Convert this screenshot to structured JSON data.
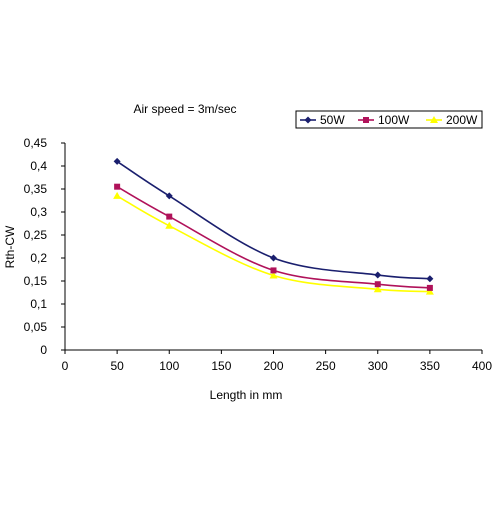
{
  "chart_data": {
    "type": "line",
    "title": "Air speed = 3m/sec",
    "xlabel": "Length in mm",
    "ylabel": "Rth-CW",
    "xlim": [
      0,
      400
    ],
    "ylim": [
      0,
      0.45
    ],
    "xticks": [
      0,
      50,
      100,
      150,
      200,
      250,
      300,
      350,
      400
    ],
    "xtick_labels": [
      "0",
      "50",
      "100",
      "150",
      "200",
      "250",
      "300",
      "350",
      "400"
    ],
    "yticks": [
      0,
      0.05,
      0.1,
      0.15,
      0.2,
      0.25,
      0.3,
      0.35,
      0.4,
      0.45
    ],
    "ytick_labels": [
      "0",
      "0,05",
      "0,1",
      "0,15",
      "0,2",
      "0,25",
      "0,3",
      "0,35",
      "0,4",
      "0,45"
    ],
    "grid": false,
    "legend_position": "top-right",
    "x": [
      50,
      100,
      200,
      300,
      350
    ],
    "series": [
      {
        "name": "50W",
        "values": [
          0.41,
          0.335,
          0.2,
          0.163,
          0.155
        ],
        "color": "#1a1f6e",
        "marker": "diamond"
      },
      {
        "name": "100W",
        "values": [
          0.355,
          0.29,
          0.173,
          0.143,
          0.135
        ],
        "color": "#b0125a",
        "marker": "square"
      },
      {
        "name": "200W",
        "values": [
          0.335,
          0.27,
          0.162,
          0.132,
          0.127
        ],
        "color": "#ffff00",
        "marker": "triangle"
      }
    ]
  }
}
